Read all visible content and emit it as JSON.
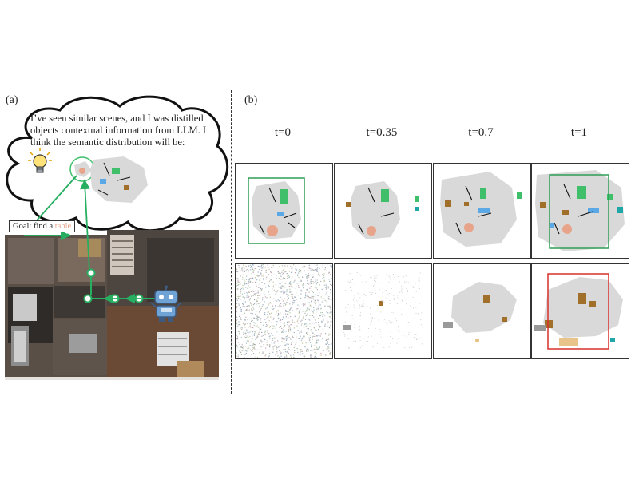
{
  "panel_a": {
    "label": "(a)",
    "thought": {
      "line1": "I’ve seen similar scenes, and I was distilled",
      "line2": "objects contextual information from LLM. I",
      "line3": "think the semantic distribution will be:"
    },
    "goal_prefix": "Goal: find a ",
    "goal_target": "table"
  },
  "panel_b": {
    "label": "(b)",
    "columns": [
      "t=0",
      "t=0.35",
      "t=0.7",
      "t=1"
    ]
  },
  "colors": {
    "map_gray": "#d9d9d9",
    "green": "#3fbf6a",
    "blue": "#5aa9e6",
    "salmon": "#e8a48a",
    "brown": "#a0702a",
    "teal": "#1fa7a7",
    "red_box": "#d9302c",
    "green_box": "#2e9e55",
    "path_green": "#27ae60"
  }
}
